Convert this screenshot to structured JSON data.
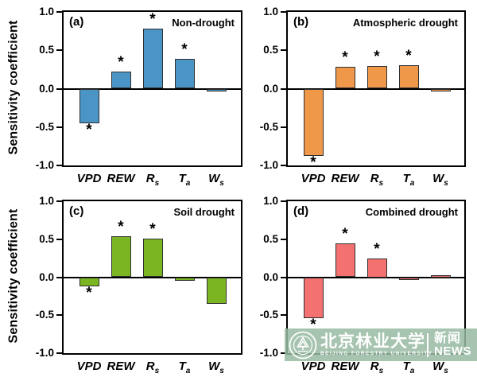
{
  "figure": {
    "ylabel": "Sensitivity coefficient",
    "yaxis": {
      "values": [
        1.0,
        0.5,
        0.0,
        -0.5,
        -1.0
      ],
      "labels": [
        "1.0",
        "0.5",
        "0.0",
        "-0.5",
        "-1.0"
      ],
      "ylim": [
        -1.0,
        1.0
      ]
    },
    "category_display": [
      {
        "main": "VPD",
        "sub": ""
      },
      {
        "main": "REW",
        "sub": ""
      },
      {
        "main": "R",
        "sub": "s"
      },
      {
        "main": "T",
        "sub": "a"
      },
      {
        "main": "W",
        "sub": "s"
      }
    ]
  },
  "chart_data": [
    {
      "type": "bar",
      "panel_letter": "(a)",
      "condition": "Non-drought",
      "bar_color": "#4A94C6",
      "categories": [
        "VPD",
        "REW",
        "Rs",
        "Ta",
        "Ws"
      ],
      "values": [
        -0.45,
        0.22,
        0.78,
        0.39,
        -0.04
      ],
      "significant": [
        true,
        true,
        true,
        true,
        false
      ],
      "xlabel": "",
      "ylabel": "Sensitivity coefficient",
      "ylim": [
        -1.0,
        1.0
      ]
    },
    {
      "type": "bar",
      "panel_letter": "(b)",
      "condition": "Atmospheric drought",
      "bar_color": "#F0984A",
      "categories": [
        "VPD",
        "REW",
        "Rs",
        "Ta",
        "Ws"
      ],
      "values": [
        -0.88,
        0.28,
        0.3,
        0.31,
        -0.01
      ],
      "significant": [
        true,
        true,
        true,
        true,
        false
      ],
      "xlabel": "",
      "ylabel": "Sensitivity coefficient",
      "ylim": [
        -1.0,
        1.0
      ]
    },
    {
      "type": "bar",
      "panel_letter": "(c)",
      "condition": "Soil drought",
      "bar_color": "#7BB622",
      "categories": [
        "VPD",
        "REW",
        "Rs",
        "Ta",
        "Ws"
      ],
      "values": [
        -0.12,
        0.54,
        0.51,
        -0.05,
        -0.35
      ],
      "significant": [
        true,
        true,
        true,
        false,
        false
      ],
      "xlabel": "",
      "ylabel": "Sensitivity coefficient",
      "ylim": [
        -1.0,
        1.0
      ]
    },
    {
      "type": "bar",
      "panel_letter": "(d)",
      "condition": "Combined drought",
      "bar_color": "#F47171",
      "categories": [
        "VPD",
        "REW",
        "Rs",
        "Ta",
        "Ws"
      ],
      "values": [
        -0.54,
        0.45,
        0.25,
        -0.03,
        0.03
      ],
      "significant": [
        true,
        true,
        true,
        false,
        false
      ],
      "xlabel": "",
      "ylabel": "Sensitivity coefficient",
      "ylim": [
        -1.0,
        1.0
      ]
    }
  ],
  "significance_marker": "*",
  "watermark": {
    "logo": "beijing-forestry-university-emblem",
    "university_cn": "北京林业大学",
    "university_en": "BEIJING FORESTRY UNIVERSITY",
    "news_cn": "新闻",
    "news_en": "NEWS",
    "banner_color": "#96BAA2"
  }
}
